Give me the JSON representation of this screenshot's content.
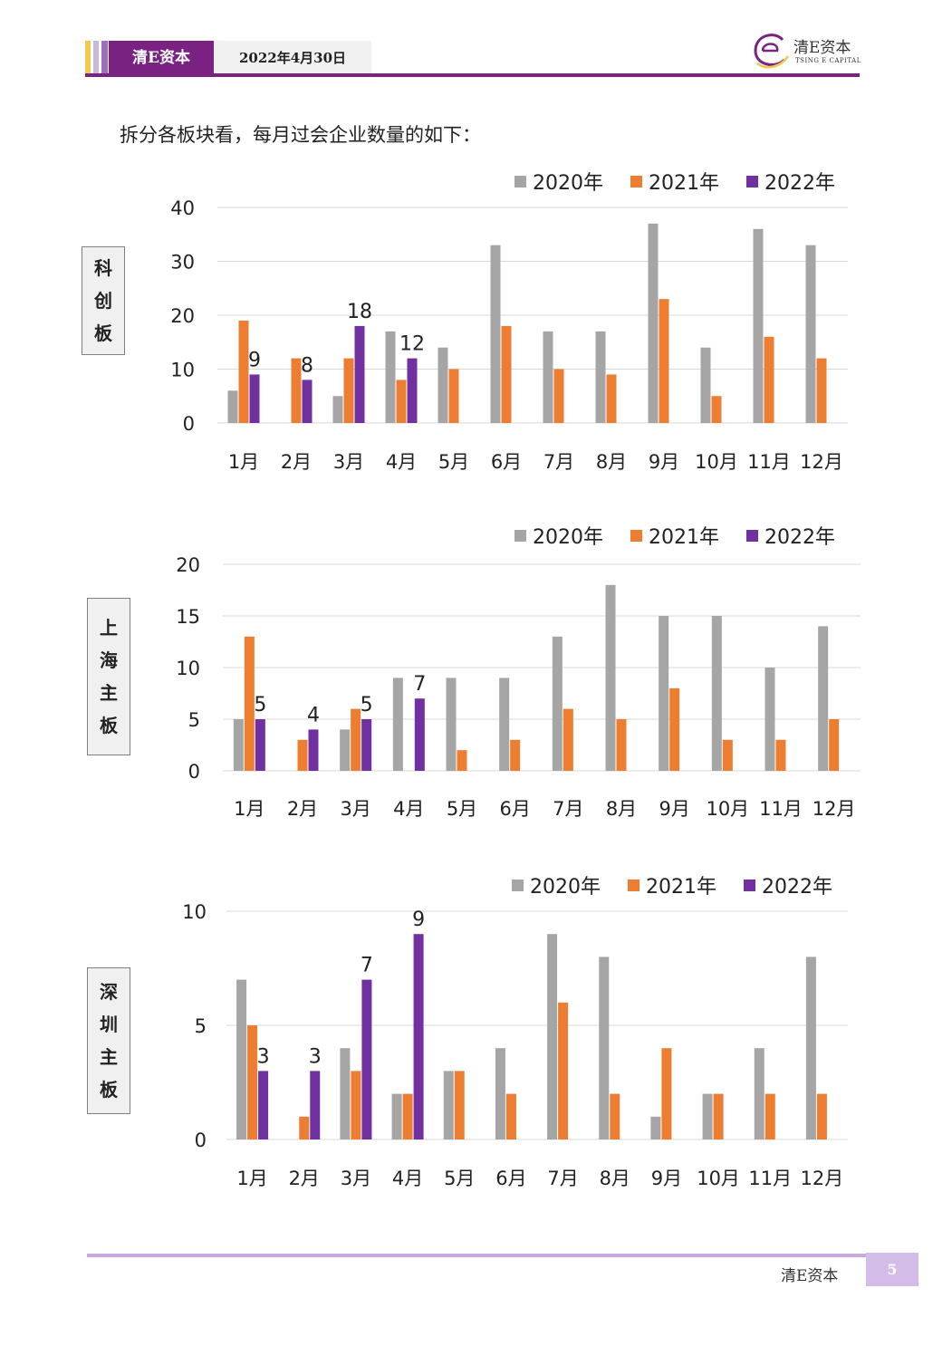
{
  "header": {
    "brand": "清E资本",
    "date": "2022年4月30日",
    "logo_cn": "清E资本",
    "logo_en": "TSING E CAPITAL"
  },
  "intro": "拆分各板块看，每月过会企业数量的如下：",
  "footer": {
    "brand": "清E资本",
    "page": "5"
  },
  "colors": {
    "2020年": "#a5a5a5",
    "2021年": "#ed7d31",
    "2022年": "#7030a0",
    "brand": "#7a2282"
  },
  "chart_data": [
    {
      "type": "bar",
      "side_label": [
        "科",
        "创",
        "板"
      ],
      "categories": [
        "1月",
        "2月",
        "3月",
        "4月",
        "5月",
        "6月",
        "7月",
        "8月",
        "9月",
        "10月",
        "11月",
        "12月"
      ],
      "legend": "top-right",
      "ylim": [
        0,
        40
      ],
      "yticks": [
        0,
        10,
        20,
        30,
        40
      ],
      "series": [
        {
          "name": "2020年",
          "values": [
            6,
            null,
            5,
            17,
            14,
            33,
            17,
            17,
            37,
            14,
            36,
            33
          ]
        },
        {
          "name": "2021年",
          "values": [
            19,
            12,
            12,
            8,
            10,
            18,
            10,
            9,
            23,
            5,
            16,
            12
          ]
        },
        {
          "name": "2022年",
          "values": [
            9,
            8,
            18,
            12,
            null,
            null,
            null,
            null,
            null,
            null,
            null,
            null
          ]
        }
      ]
    },
    {
      "type": "bar",
      "side_label": [
        "上",
        "海",
        "主",
        "板"
      ],
      "categories": [
        "1月",
        "2月",
        "3月",
        "4月",
        "5月",
        "6月",
        "7月",
        "8月",
        "9月",
        "10月",
        "11月",
        "12月"
      ],
      "legend": "top-right",
      "ylim": [
        0,
        20
      ],
      "yticks": [
        0,
        5,
        10,
        15,
        20
      ],
      "series": [
        {
          "name": "2020年",
          "values": [
            5,
            null,
            4,
            9,
            9,
            9,
            13,
            18,
            15,
            15,
            10,
            14
          ]
        },
        {
          "name": "2021年",
          "values": [
            13,
            3,
            6,
            null,
            2,
            3,
            6,
            5,
            8,
            3,
            3,
            5
          ]
        },
        {
          "name": "2022年",
          "values": [
            5,
            4,
            5,
            7,
            null,
            null,
            null,
            null,
            null,
            null,
            null,
            null
          ]
        }
      ]
    },
    {
      "type": "bar",
      "side_label": [
        "深",
        "圳",
        "主",
        "板"
      ],
      "categories": [
        "1月",
        "2月",
        "3月",
        "4月",
        "5月",
        "6月",
        "7月",
        "8月",
        "9月",
        "10月",
        "11月",
        "12月"
      ],
      "legend": "top-right",
      "ylim": [
        0,
        10
      ],
      "yticks": [
        0,
        5,
        10
      ],
      "series": [
        {
          "name": "2020年",
          "values": [
            7,
            null,
            4,
            2,
            3,
            4,
            9,
            8,
            1,
            2,
            4,
            8
          ]
        },
        {
          "name": "2021年",
          "values": [
            5,
            1,
            3,
            2,
            3,
            2,
            6,
            2,
            4,
            2,
            2,
            2
          ]
        },
        {
          "name": "2022年",
          "values": [
            3,
            3,
            7,
            9,
            null,
            null,
            null,
            null,
            null,
            null,
            null,
            null
          ]
        }
      ]
    }
  ]
}
